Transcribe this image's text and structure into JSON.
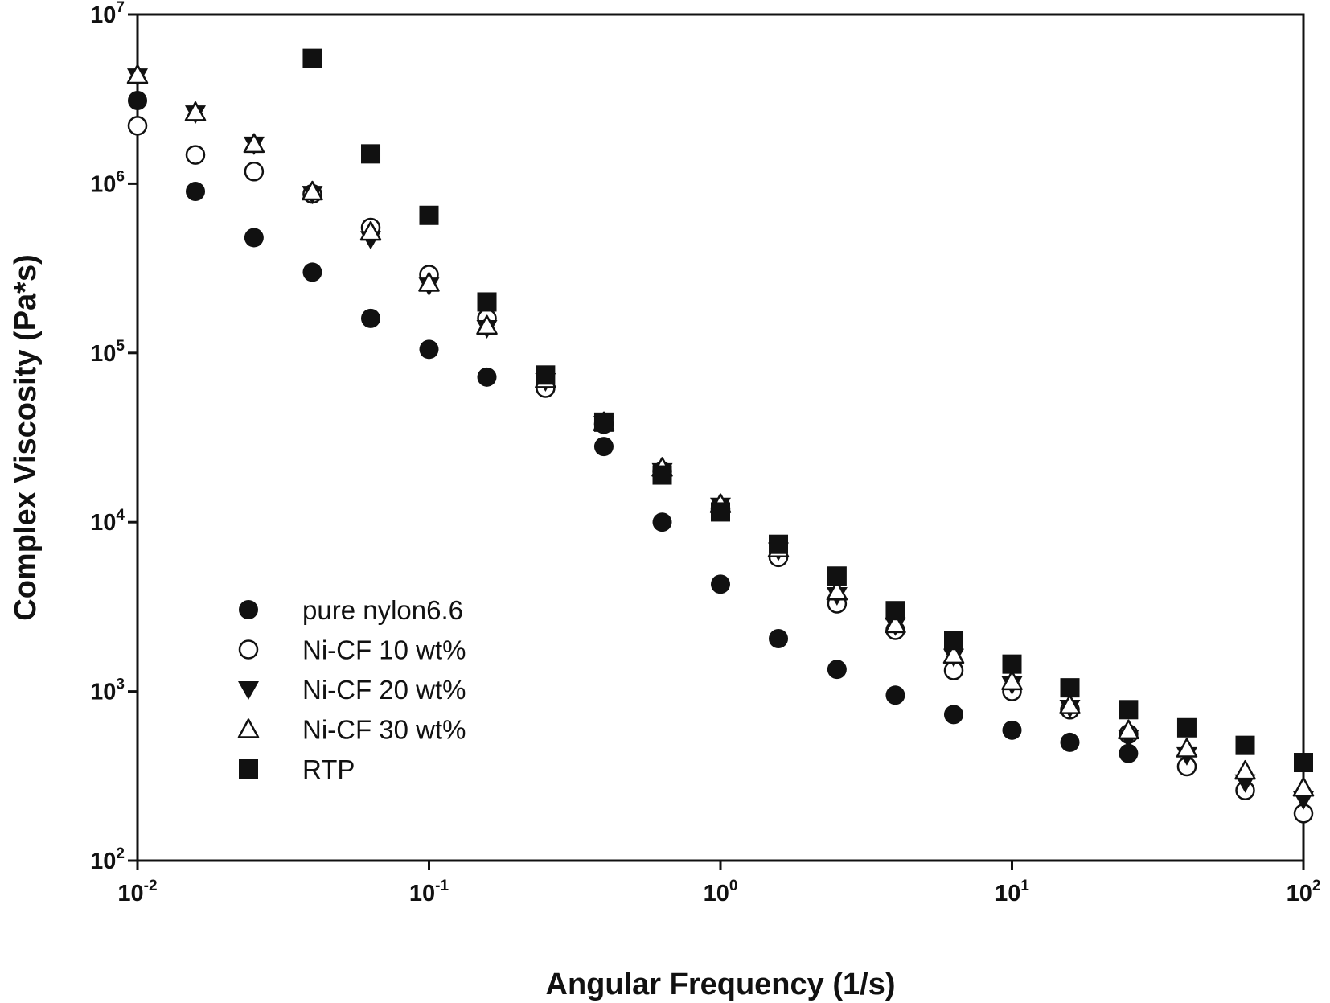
{
  "chart_data": {
    "type": "scatter",
    "xlabel": "Angular Frequency (1/s)",
    "ylabel": "Complex Viscosity (Pa*s)",
    "x_scale": "log",
    "y_scale": "log",
    "xlim": [
      0.01,
      100
    ],
    "ylim": [
      100,
      10000000
    ],
    "x_ticks": [
      {
        "base": "10",
        "exp": "-2",
        "value": 0.01
      },
      {
        "base": "10",
        "exp": "-1",
        "value": 0.1
      },
      {
        "base": "10",
        "exp": "0",
        "value": 1
      },
      {
        "base": "10",
        "exp": "1",
        "value": 10
      },
      {
        "base": "10",
        "exp": "2",
        "value": 100
      }
    ],
    "y_ticks": [
      {
        "base": "10",
        "exp": "2",
        "value": 100
      },
      {
        "base": "10",
        "exp": "3",
        "value": 1000
      },
      {
        "base": "10",
        "exp": "4",
        "value": 10000
      },
      {
        "base": "10",
        "exp": "5",
        "value": 100000
      },
      {
        "base": "10",
        "exp": "6",
        "value": 1000000
      },
      {
        "base": "10",
        "exp": "7",
        "value": 10000000
      }
    ],
    "grid": false,
    "legend_position": "lower-left",
    "x": [
      0.01,
      0.0158,
      0.0251,
      0.0398,
      0.0631,
      0.1,
      0.158,
      0.251,
      0.398,
      0.631,
      1,
      1.58,
      2.51,
      3.98,
      6.31,
      10,
      15.8,
      25.1,
      39.8,
      63.1,
      100
    ],
    "series": [
      {
        "name": "pure nylon6.6",
        "marker": "filled-circle",
        "values": [
          3100000,
          900000,
          480000,
          300000,
          160000,
          105000,
          72000,
          62000,
          28000,
          10000,
          4300,
          2050,
          1350,
          950,
          730,
          590,
          500,
          430,
          null,
          null,
          null
        ]
      },
      {
        "name": "Ni-CF 10 wt%",
        "marker": "open-circle",
        "values": [
          2200000,
          1480000,
          1180000,
          870000,
          550000,
          290000,
          160000,
          62000,
          38000,
          20000,
          12000,
          6200,
          3300,
          2300,
          1330,
          1000,
          780,
          560,
          360,
          260,
          190
        ]
      },
      {
        "name": "Ni-CF 20 wt%",
        "marker": "filled-triangle-down",
        "values": [
          4300000,
          2600000,
          1700000,
          870000,
          470000,
          250000,
          140000,
          68000,
          38000,
          20000,
          12500,
          6800,
          3700,
          2450,
          1600,
          1100,
          800,
          530,
          420,
          290,
          230
        ]
      },
      {
        "name": "Ni-CF 30 wt%",
        "marker": "open-triangle-up",
        "values": [
          4400000,
          2650000,
          1720000,
          900000,
          520000,
          260000,
          145000,
          70000,
          39000,
          21000,
          12800,
          7000,
          3900,
          2500,
          1650,
          1150,
          830,
          590,
          460,
          340,
          270
        ]
      },
      {
        "name": "RTP",
        "marker": "filled-square",
        "values": [
          null,
          null,
          null,
          5500000,
          1500000,
          650000,
          200000,
          74000,
          39000,
          19000,
          11500,
          7400,
          4800,
          3000,
          2000,
          1450,
          1050,
          780,
          610,
          480,
          380
        ]
      }
    ]
  }
}
